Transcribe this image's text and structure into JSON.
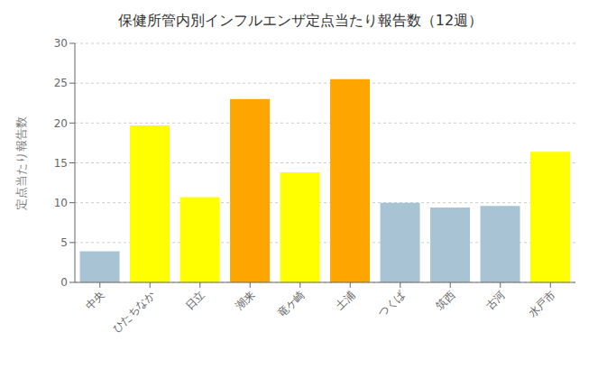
{
  "chart_data": {
    "type": "bar",
    "title": "保健所管内別インフルエンザ定点当たり報告数（12週）",
    "ylabel": "定点当たり報告数",
    "categories": [
      "中央",
      "ひたちなか",
      "日立",
      "潮来",
      "竜ケ崎",
      "土浦",
      "つくば",
      "筑西",
      "古河",
      "水戸市"
    ],
    "values": [
      3.9,
      19.7,
      10.7,
      23.0,
      13.8,
      25.5,
      10.0,
      9.4,
      9.6,
      16.4
    ],
    "colors": [
      "#a8c4d4",
      "#ffff00",
      "#ffff00",
      "#ffa500",
      "#ffff00",
      "#ffa500",
      "#a8c4d4",
      "#a8c4d4",
      "#a8c4d4",
      "#ffff00"
    ],
    "ylim": [
      0,
      30
    ],
    "yticks": [
      0,
      5,
      10,
      15,
      20,
      25,
      30
    ],
    "grid": true
  }
}
